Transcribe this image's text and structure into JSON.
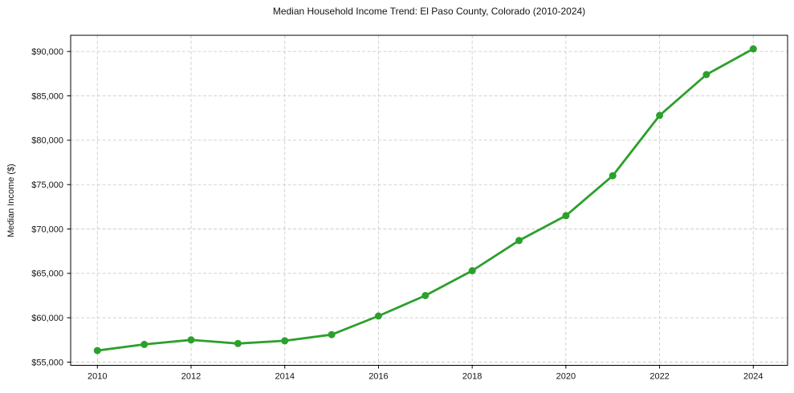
{
  "chart_data": {
    "type": "line",
    "title": "Median Household Income Trend: El Paso County, Colorado (2010-2024)",
    "xlabel": "",
    "ylabel": "Median Income ($)",
    "x": [
      2010,
      2011,
      2012,
      2013,
      2014,
      2015,
      2016,
      2017,
      2018,
      2019,
      2020,
      2021,
      2022,
      2023,
      2024
    ],
    "series": [
      {
        "name": "Median Household Income",
        "values": [
          56300,
          57000,
          57500,
          57100,
          57400,
          58100,
          60200,
          62500,
          65300,
          68700,
          71500,
          76000,
          82800,
          87400,
          90300
        ]
      }
    ],
    "x_ticks": [
      2010,
      2012,
      2014,
      2016,
      2018,
      2020,
      2022,
      2024
    ],
    "x_tick_labels": [
      "2010",
      "2012",
      "2014",
      "2016",
      "2018",
      "2020",
      "2022",
      "2024"
    ],
    "y_ticks": [
      55000,
      60000,
      65000,
      70000,
      75000,
      80000,
      85000,
      90000
    ],
    "y_tick_labels": [
      "$55,000",
      "$60,000",
      "$65,000",
      "$70,000",
      "$75,000",
      "$80,000",
      "$85,000",
      "$90,000"
    ],
    "xlim": [
      2009.43,
      2024.73
    ],
    "ylim": [
      54600,
      91800
    ],
    "grid": true,
    "grid_style": "dashed",
    "legend": "none",
    "marker": "circle",
    "colors": {
      "line": "#2ca02c",
      "marker": "#2ca02c",
      "grid": "#cccccc",
      "axis": "#000000",
      "text": "#141414"
    }
  }
}
